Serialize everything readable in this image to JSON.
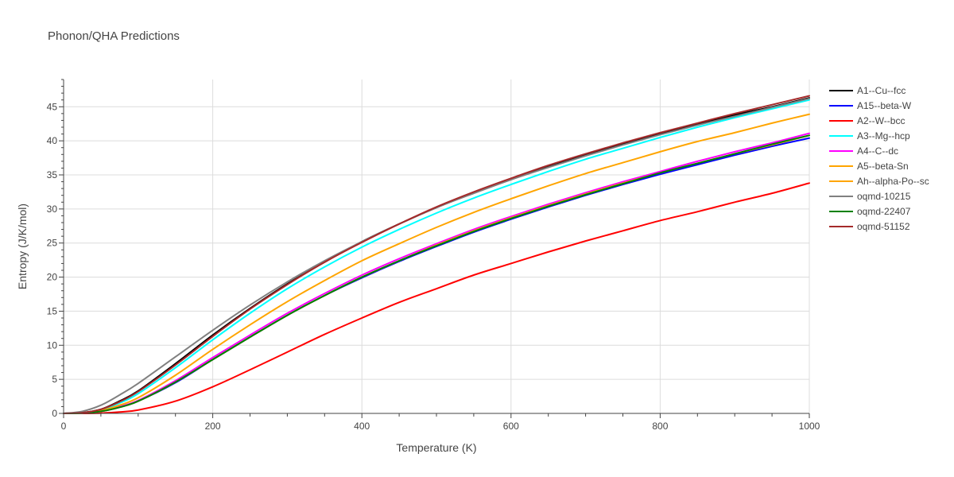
{
  "chart_data": {
    "type": "line",
    "title": "Phonon/QHA Predictions",
    "xlabel": "Temperature (K)",
    "ylabel": "Entropy (J/K/mol)",
    "xlim": [
      0,
      1000
    ],
    "ylim": [
      0,
      49
    ],
    "xticks": [
      0,
      200,
      400,
      600,
      800,
      1000
    ],
    "yticks": [
      0,
      5,
      10,
      15,
      20,
      25,
      30,
      35,
      40,
      45
    ],
    "grid": true,
    "legend_position": "top-right",
    "x": [
      0,
      25,
      50,
      75,
      100,
      150,
      200,
      250,
      300,
      350,
      400,
      450,
      500,
      550,
      600,
      650,
      700,
      750,
      800,
      850,
      900,
      950,
      1000
    ],
    "series": [
      {
        "name": "A1--Cu--fcc",
        "color": "#000000",
        "values": [
          0,
          0.1,
          0.6,
          1.8,
          3.3,
          7.3,
          11.5,
          15.4,
          19.0,
          22.2,
          25.2,
          27.8,
          30.2,
          32.4,
          34.4,
          36.2,
          37.9,
          39.5,
          41.0,
          42.4,
          43.8,
          45.0,
          46.3
        ]
      },
      {
        "name": "A15--beta-W",
        "color": "#0000ff",
        "values": [
          0,
          0.05,
          0.3,
          0.9,
          1.8,
          4.5,
          7.9,
          11.2,
          14.4,
          17.3,
          19.9,
          22.3,
          24.5,
          26.6,
          28.5,
          30.3,
          32.0,
          33.6,
          35.1,
          36.5,
          37.9,
          39.2,
          40.4
        ]
      },
      {
        "name": "A2--W--bcc",
        "color": "#ff0000",
        "values": [
          0,
          0.0,
          0.05,
          0.2,
          0.5,
          1.8,
          3.9,
          6.4,
          9.0,
          11.6,
          14.0,
          16.3,
          18.3,
          20.3,
          22.0,
          23.7,
          25.3,
          26.8,
          28.3,
          29.6,
          31.0,
          32.3,
          33.8
        ]
      },
      {
        "name": "A3--Mg--hcp",
        "color": "#00ffff",
        "values": [
          0,
          0.1,
          0.5,
          1.5,
          2.9,
          6.7,
          10.8,
          14.7,
          18.3,
          21.5,
          24.4,
          27.0,
          29.4,
          31.6,
          33.6,
          35.5,
          37.3,
          38.9,
          40.5,
          42.0,
          43.4,
          44.7,
          46.0
        ]
      },
      {
        "name": "A4--C--dc",
        "color": "#ff00ff",
        "values": [
          0,
          0.05,
          0.3,
          1.0,
          1.9,
          4.8,
          8.2,
          11.5,
          14.7,
          17.6,
          20.3,
          22.7,
          24.9,
          27.0,
          28.9,
          30.7,
          32.4,
          34.0,
          35.5,
          37.0,
          38.4,
          39.7,
          41.1
        ]
      },
      {
        "name": "A5--beta-Sn",
        "color": "#ffa500",
        "values": [
          0,
          0.05,
          0.3,
          0.9,
          1.8,
          4.6,
          7.9,
          11.2,
          14.4,
          17.3,
          20.0,
          22.4,
          24.7,
          26.8,
          28.7,
          30.5,
          32.2,
          33.8,
          35.3,
          36.7,
          38.1,
          39.4,
          40.8
        ]
      },
      {
        "name": "Ah--alpha-Po--sc",
        "color": "#ffa500",
        "values": [
          0,
          0.1,
          0.4,
          1.2,
          2.3,
          5.6,
          9.4,
          13.0,
          16.4,
          19.5,
          22.4,
          24.9,
          27.3,
          29.5,
          31.5,
          33.4,
          35.2,
          36.8,
          38.4,
          39.9,
          41.2,
          42.6,
          43.9
        ]
      },
      {
        "name": "oqmd-10215",
        "color": "#808080",
        "values": [
          0,
          0.3,
          1.2,
          2.7,
          4.4,
          8.3,
          12.2,
          15.9,
          19.3,
          22.4,
          25.2,
          27.8,
          30.2,
          32.3,
          34.3,
          36.1,
          37.8,
          39.4,
          40.9,
          42.3,
          43.6,
          44.9,
          46.2
        ]
      },
      {
        "name": "oqmd-22407",
        "color": "#008000",
        "values": [
          0,
          0.05,
          0.3,
          0.9,
          1.8,
          4.6,
          7.9,
          11.2,
          14.4,
          17.3,
          20.0,
          22.4,
          24.6,
          26.7,
          28.6,
          30.4,
          32.1,
          33.7,
          35.3,
          36.7,
          38.1,
          39.5,
          40.8
        ]
      },
      {
        "name": "oqmd-51152",
        "color": "#a52a2a",
        "values": [
          0,
          0.1,
          0.6,
          1.7,
          3.2,
          7.1,
          11.3,
          15.3,
          18.9,
          22.2,
          25.1,
          27.8,
          30.3,
          32.5,
          34.5,
          36.4,
          38.1,
          39.7,
          41.2,
          42.6,
          44.0,
          45.3,
          46.6
        ]
      }
    ]
  }
}
